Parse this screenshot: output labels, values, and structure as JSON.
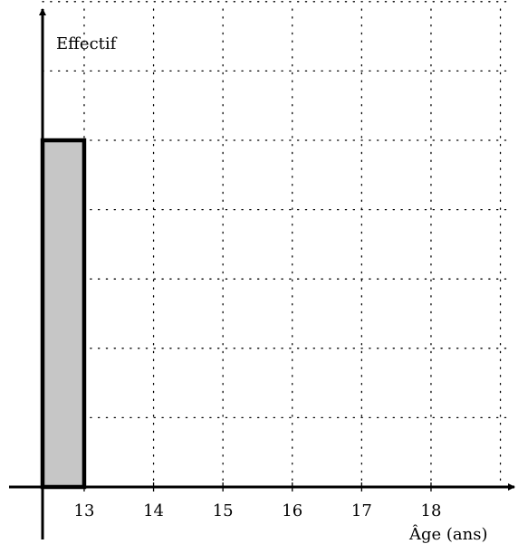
{
  "chart_data": {
    "type": "bar",
    "xlabel": "Âge (ans)",
    "ylabel": "Effectif",
    "x_ticks": [
      13,
      14,
      15,
      16,
      17,
      18
    ],
    "xlim": [
      12.4,
      19.8
    ],
    "ylim": [
      0,
      7.4
    ],
    "grid": true,
    "bars": [
      {
        "x_start": 12.4,
        "x_end": 13,
        "value": 5
      }
    ],
    "colors": {
      "bar_fill": "#c6c6c6",
      "bar_stroke": "#000000",
      "axis": "#000000",
      "grid": "#000000"
    }
  }
}
